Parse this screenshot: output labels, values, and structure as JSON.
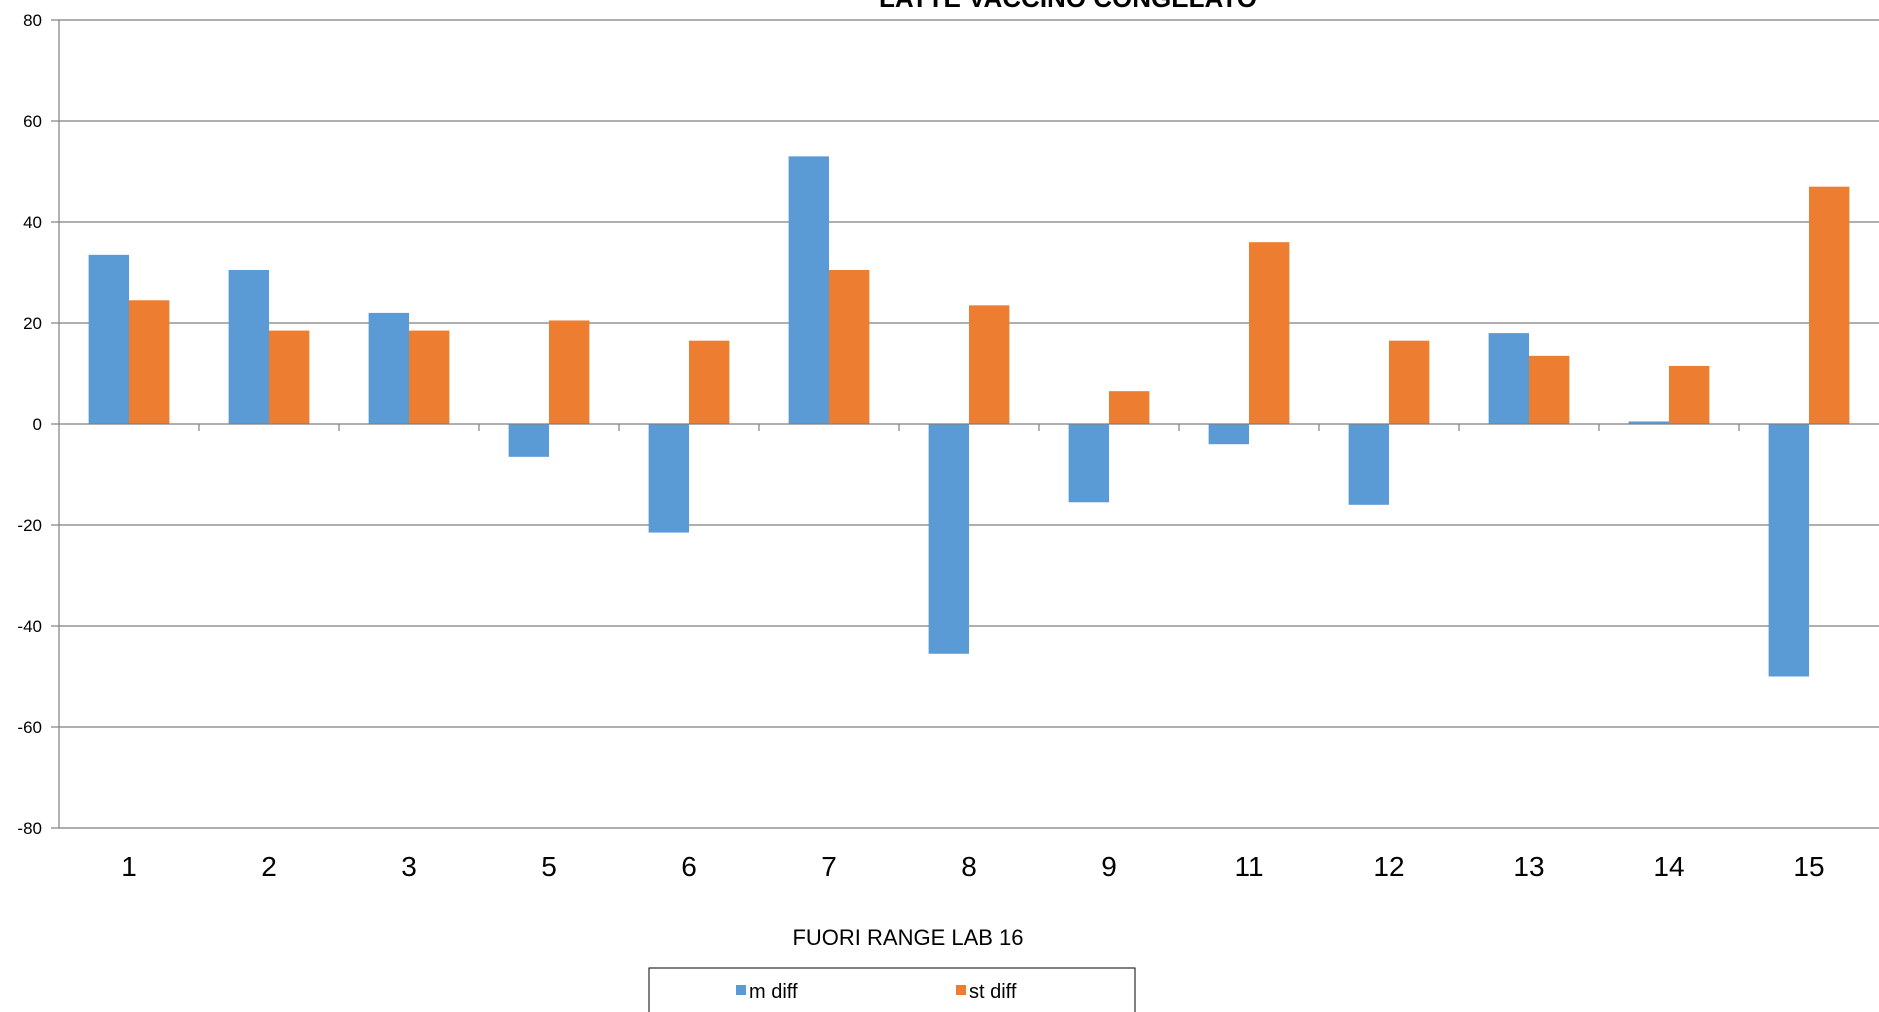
{
  "chart_data": {
    "type": "bar",
    "title": "LATTE VACCINO CONGELATO",
    "xlabel": "FUORI RANGE  LAB 16",
    "ylabel": "",
    "ylim": [
      -80,
      80
    ],
    "yticks": [
      80,
      60,
      40,
      20,
      0,
      -20,
      -40,
      -60,
      -80
    ],
    "categories": [
      "1",
      "2",
      "3",
      "5",
      "6",
      "7",
      "8",
      "9",
      "11",
      "12",
      "13",
      "14",
      "15"
    ],
    "series": [
      {
        "name": "m diff",
        "color": "#5B9BD5",
        "values": [
          33.5,
          30.5,
          22.0,
          -6.5,
          -21.5,
          53.0,
          -45.5,
          -15.5,
          -4.0,
          -16.0,
          18.0,
          0.5,
          -50.0
        ]
      },
      {
        "name": "st diff",
        "color": "#ED7D31",
        "values": [
          24.5,
          18.5,
          18.5,
          20.5,
          16.5,
          30.5,
          23.5,
          6.5,
          36.0,
          16.5,
          13.5,
          11.5,
          47.0
        ]
      }
    ],
    "grid": true,
    "legend_position": "bottom"
  }
}
